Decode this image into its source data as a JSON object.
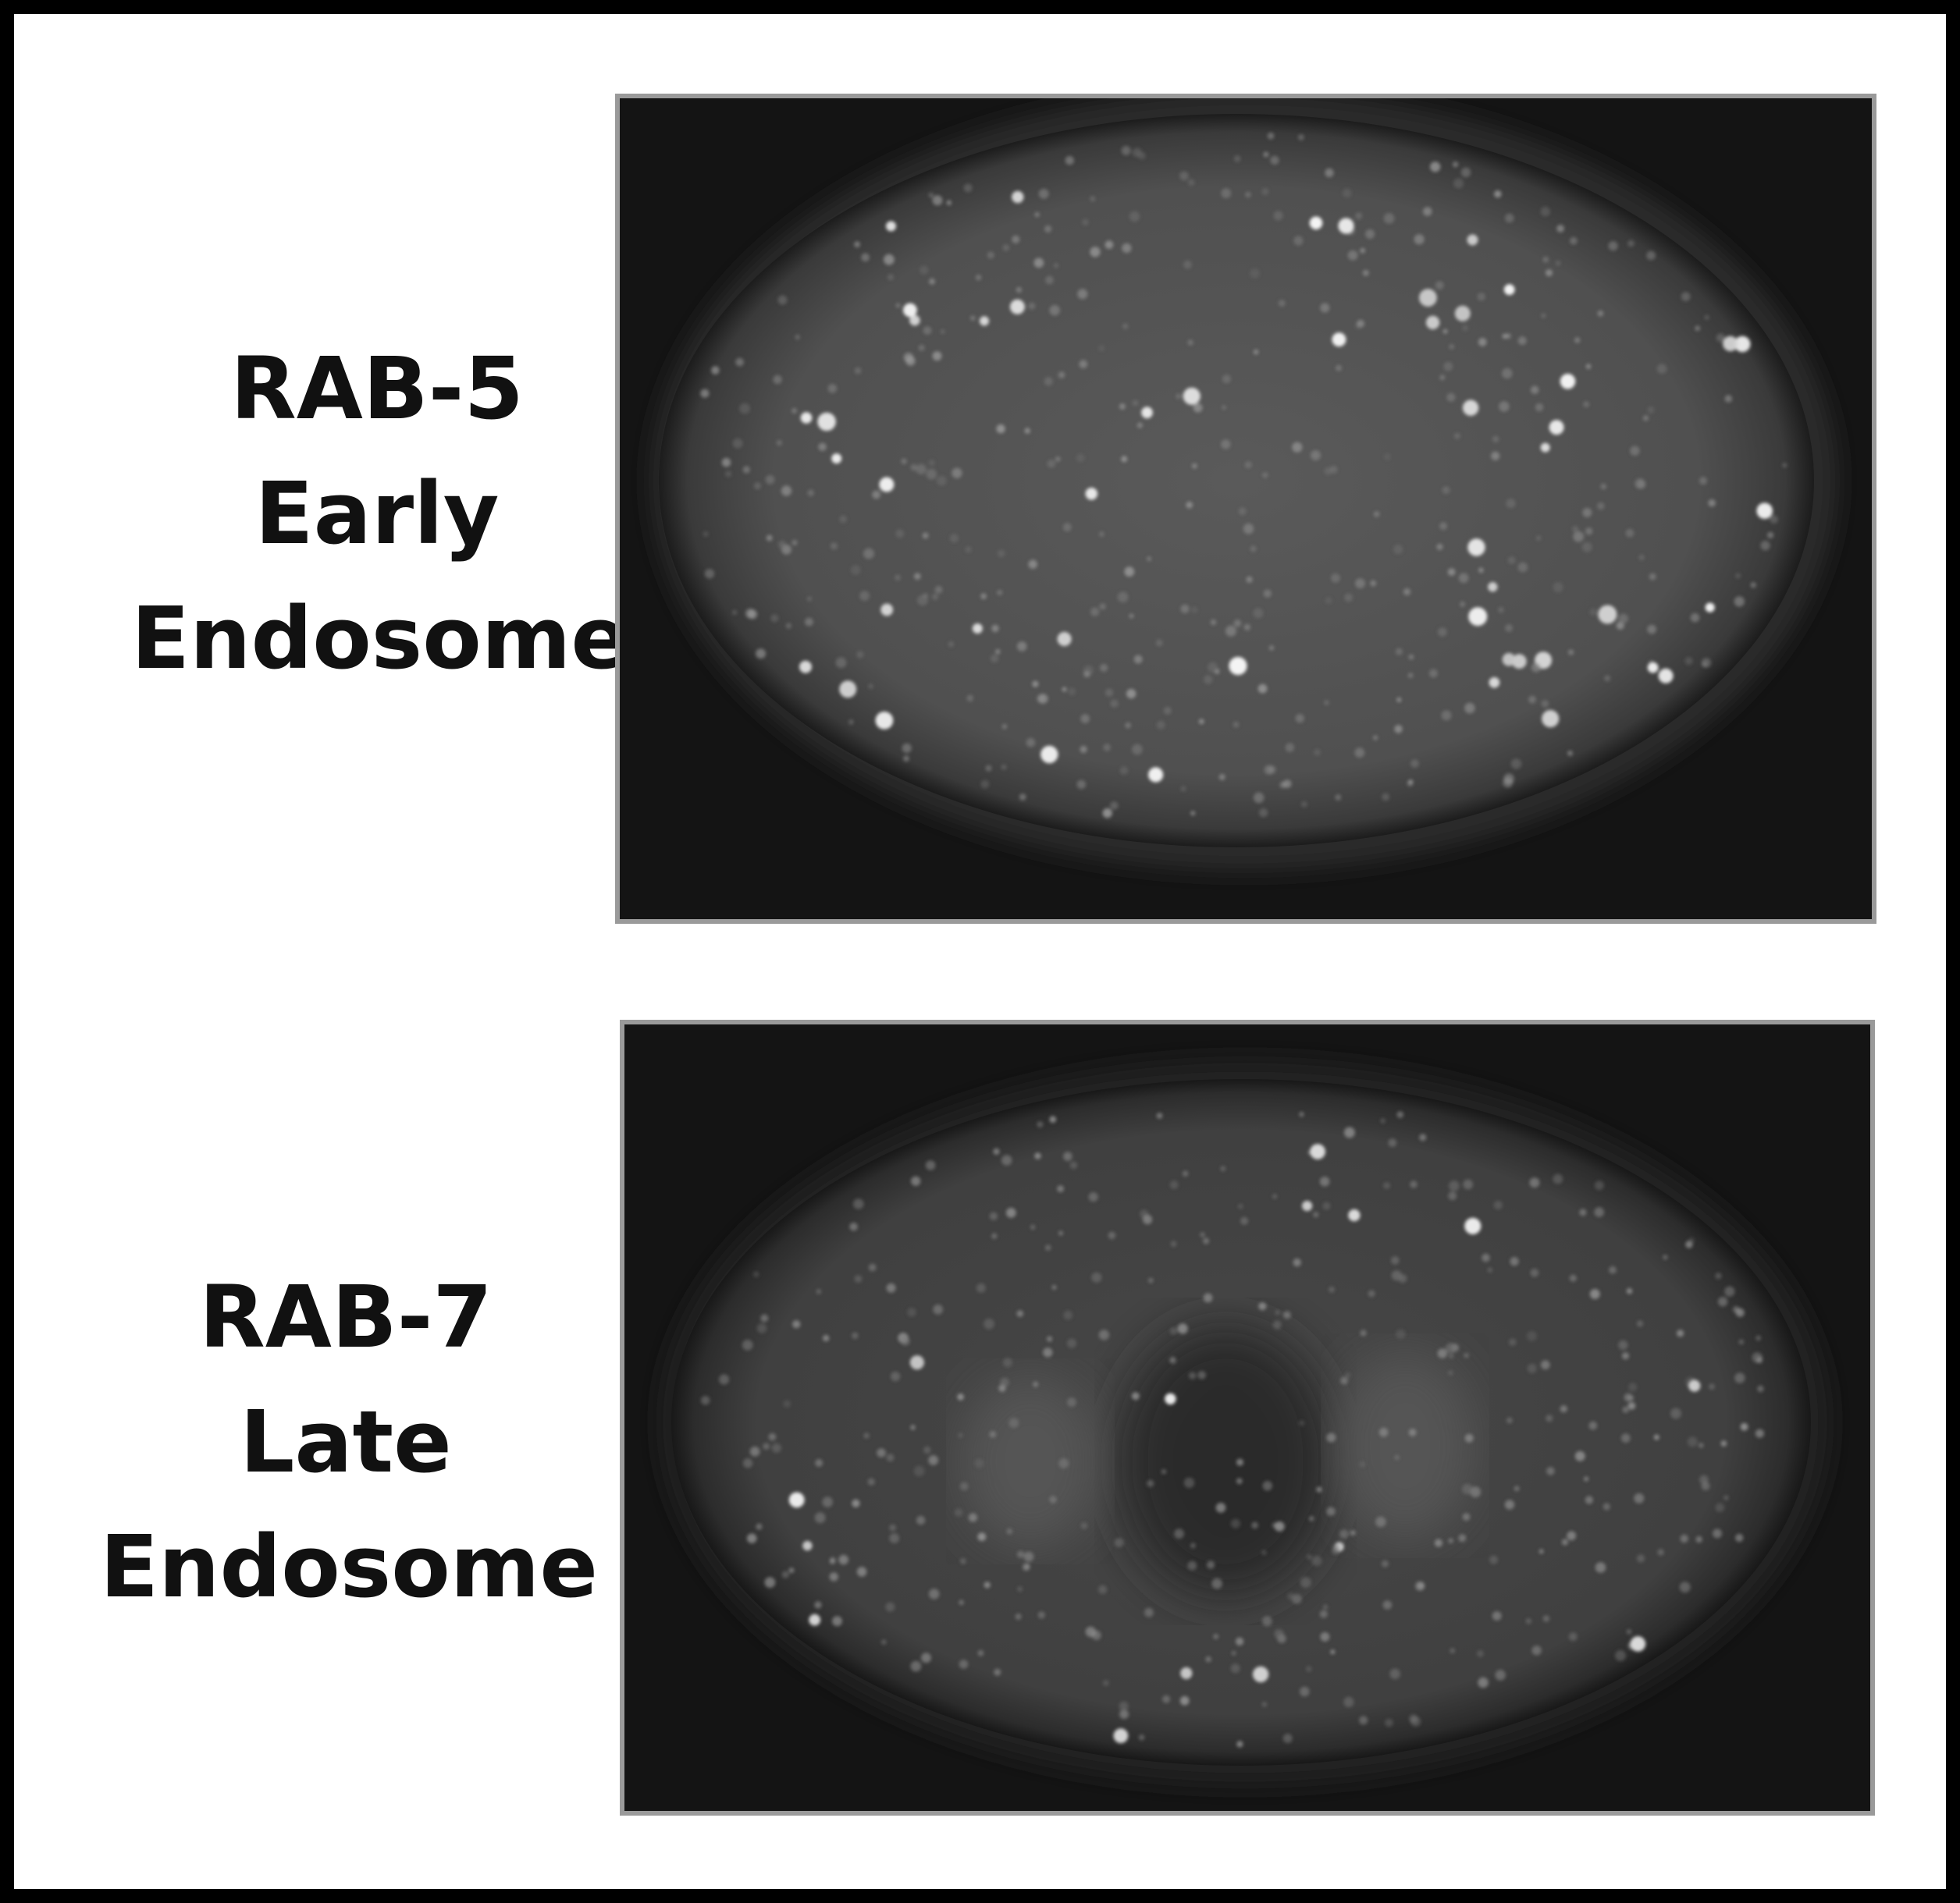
{
  "panels": [
    {
      "label_lines": [
        "RAB-5",
        "Early",
        "Endosome"
      ]
    },
    {
      "label_lines": [
        "RAB-7",
        "Late",
        "Endosome"
      ]
    }
  ]
}
